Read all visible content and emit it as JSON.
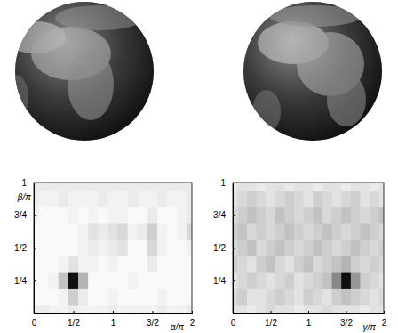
{
  "chart_data": [
    {
      "type": "heatmap",
      "x_label": "α/π",
      "y_label": "β/π",
      "xlim": [
        0,
        2
      ],
      "ylim": [
        0,
        1
      ],
      "zlim": [
        0,
        1
      ],
      "xticks": [
        0,
        {
          "value": 0.5,
          "label": "1/2"
        },
        1,
        {
          "value": 1.5,
          "label": "3/2"
        },
        2
      ],
      "yticks": [
        {
          "value": 0.25,
          "label": "1/4"
        },
        {
          "value": 0.5,
          "label": "1/2"
        },
        {
          "value": 0.75,
          "label": "3/4"
        },
        1
      ],
      "x": [
        0,
        0.125,
        0.25,
        0.375,
        0.5,
        0.625,
        0.75,
        0.875,
        1,
        1.125,
        1.25,
        1.375,
        1.5,
        1.625,
        1.75,
        1.875,
        2
      ],
      "y": [
        0,
        0.125,
        0.25,
        0.375,
        0.5,
        0.625,
        0.75,
        0.875,
        1
      ],
      "cells": [
        [
          0.15,
          0.15,
          0.1,
          0.1,
          0.15,
          0.1,
          0.1,
          0.1,
          0.15,
          0.1,
          0.1,
          0.1,
          0.1,
          0.15,
          0.1,
          0.1,
          0.15
        ],
        [
          0.05,
          0.05,
          0.05,
          0.1,
          0.3,
          0.15,
          0.05,
          0.05,
          0.1,
          0.05,
          0.05,
          0.05,
          0.05,
          0.1,
          0.05,
          0.05,
          0.05
        ],
        [
          0.05,
          0.05,
          0.1,
          0.35,
          0.95,
          0.4,
          0.05,
          0.05,
          0.05,
          0.05,
          0.1,
          0.05,
          0.05,
          0.05,
          0.05,
          0.05,
          0.05
        ],
        [
          0.05,
          0.05,
          0.05,
          0.1,
          0.2,
          0.1,
          0.1,
          0.05,
          0.1,
          0.05,
          0.05,
          0.05,
          0.15,
          0.05,
          0.05,
          0.05,
          0.05
        ],
        [
          0.05,
          0.05,
          0.05,
          0.05,
          0.05,
          0.1,
          0.15,
          0.1,
          0.15,
          0.2,
          0.05,
          0.05,
          0.25,
          0.1,
          0.05,
          0.05,
          0.1
        ],
        [
          0.05,
          0.05,
          0.05,
          0.05,
          0.05,
          0.1,
          0.2,
          0.15,
          0.2,
          0.25,
          0.1,
          0.15,
          0.3,
          0.1,
          0.05,
          0.1,
          0.25
        ],
        [
          0.1,
          0.05,
          0.05,
          0.05,
          0.1,
          0.05,
          0.1,
          0.05,
          0.1,
          0.1,
          0.05,
          0.05,
          0.15,
          0.05,
          0.05,
          0.1,
          0.15
        ],
        [
          0.15,
          0.1,
          0.1,
          0.15,
          0.1,
          0.1,
          0.1,
          0.15,
          0.1,
          0.1,
          0.15,
          0.1,
          0.1,
          0.15,
          0.1,
          0.1,
          0.15
        ],
        [
          0.15,
          0.15,
          0.15,
          0.15,
          0.15,
          0.15,
          0.15,
          0.15,
          0.15,
          0.15,
          0.15,
          0.15,
          0.15,
          0.15,
          0.15,
          0.15,
          0.15
        ]
      ]
    },
    {
      "type": "heatmap",
      "x_label": "γ/π",
      "xlim": [
        0,
        2
      ],
      "ylim": [
        0,
        1
      ],
      "zlim": [
        0,
        1
      ],
      "xticks": [
        0,
        {
          "value": 0.5,
          "label": "1/2"
        },
        1,
        {
          "value": 1.5,
          "label": "3/2"
        },
        2
      ],
      "yticks": [
        {
          "value": 0.25,
          "label": "1/4"
        },
        {
          "value": 0.5,
          "label": "1/2"
        },
        {
          "value": 0.75,
          "label": "3/4"
        },
        1
      ],
      "x": [
        0,
        0.125,
        0.25,
        0.375,
        0.5,
        0.625,
        0.75,
        0.875,
        1,
        1.125,
        1.25,
        1.375,
        1.5,
        1.625,
        1.75,
        1.875,
        2
      ],
      "y": [
        0,
        0.125,
        0.25,
        0.375,
        0.5,
        0.625,
        0.75,
        0.875,
        1
      ],
      "cells": [
        [
          0.2,
          0.2,
          0.15,
          0.2,
          0.25,
          0.2,
          0.2,
          0.15,
          0.2,
          0.2,
          0.25,
          0.2,
          0.2,
          0.2,
          0.15,
          0.2,
          0.2
        ],
        [
          0.25,
          0.3,
          0.2,
          0.2,
          0.25,
          0.3,
          0.25,
          0.2,
          0.3,
          0.25,
          0.2,
          0.3,
          0.35,
          0.3,
          0.25,
          0.2,
          0.25
        ],
        [
          0.2,
          0.25,
          0.3,
          0.25,
          0.2,
          0.25,
          0.3,
          0.2,
          0.25,
          0.3,
          0.35,
          0.55,
          0.95,
          0.5,
          0.3,
          0.25,
          0.2
        ],
        [
          0.3,
          0.25,
          0.2,
          0.3,
          0.35,
          0.25,
          0.2,
          0.3,
          0.35,
          0.25,
          0.3,
          0.35,
          0.4,
          0.3,
          0.25,
          0.3,
          0.25
        ],
        [
          0.25,
          0.3,
          0.35,
          0.25,
          0.3,
          0.35,
          0.3,
          0.25,
          0.3,
          0.35,
          0.3,
          0.25,
          0.3,
          0.35,
          0.3,
          0.25,
          0.3
        ],
        [
          0.3,
          0.35,
          0.25,
          0.3,
          0.25,
          0.3,
          0.35,
          0.3,
          0.25,
          0.3,
          0.35,
          0.3,
          0.25,
          0.3,
          0.35,
          0.3,
          0.25
        ],
        [
          0.25,
          0.3,
          0.35,
          0.3,
          0.25,
          0.35,
          0.3,
          0.25,
          0.3,
          0.35,
          0.25,
          0.3,
          0.35,
          0.3,
          0.25,
          0.3,
          0.35
        ],
        [
          0.2,
          0.25,
          0.3,
          0.25,
          0.2,
          0.25,
          0.3,
          0.25,
          0.2,
          0.3,
          0.25,
          0.2,
          0.25,
          0.3,
          0.2,
          0.25,
          0.2
        ],
        [
          0.15,
          0.2,
          0.2,
          0.15,
          0.2,
          0.2,
          0.15,
          0.2,
          0.2,
          0.15,
          0.2,
          0.2,
          0.15,
          0.2,
          0.2,
          0.15,
          0.2
        ]
      ]
    }
  ]
}
